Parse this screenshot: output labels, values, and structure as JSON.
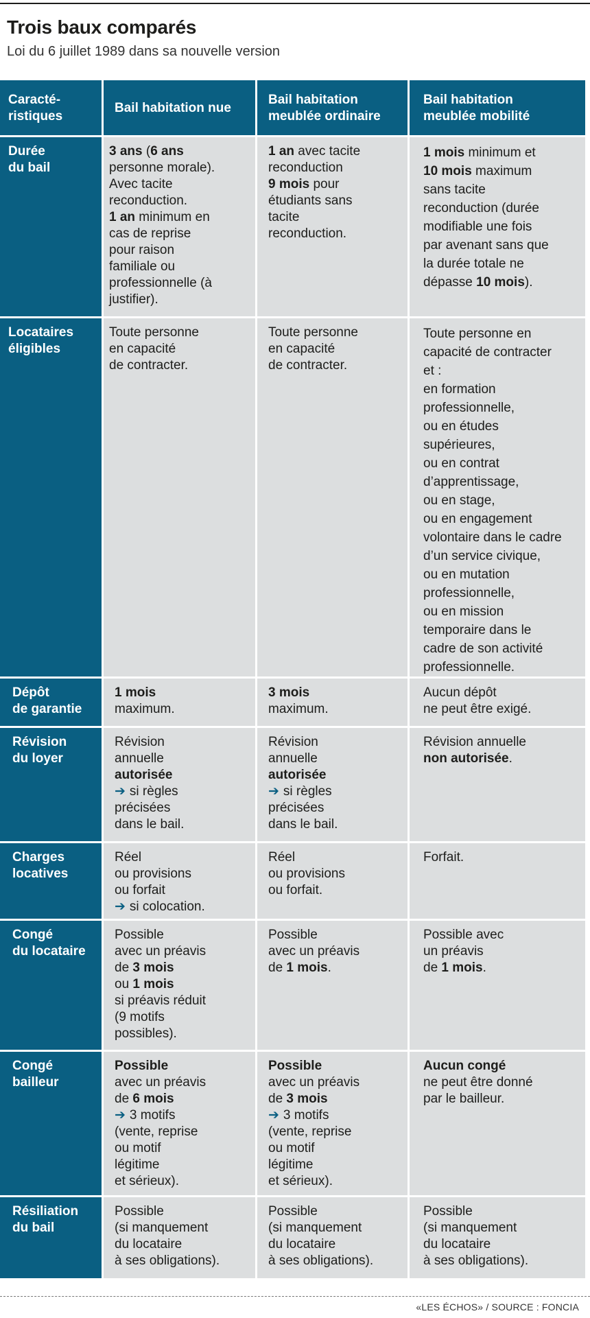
{
  "title": "Trois baux comparés",
  "subtitle": "Loi du 6 juillet 1989 dans sa nouvelle version",
  "headers": {
    "c0": [
      "Caracté-",
      "ristiques"
    ],
    "c1": [
      "Bail habitation nue"
    ],
    "c2": [
      "Bail habitation",
      "meublée ordinaire"
    ],
    "c3": [
      "Bail habitation",
      "meublée mobilité"
    ]
  },
  "rows": {
    "duree": {
      "label": [
        "Durée",
        "du bail"
      ],
      "nue": {
        "l1a": "3 ans",
        "l1b": " (",
        "l1c": "6 ans",
        "l2": "personne morale).",
        "l3": "Avec tacite",
        "l4": "reconduction.",
        "l5a": "1 an",
        "l5b": " minimum en",
        "l6": "cas de reprise",
        "l7": "pour raison",
        "l8": "familiale ou",
        "l9": "professionnelle (à",
        "l10": "justifier)."
      },
      "ordinaire": {
        "l1a": "1 an",
        "l1b": " avec tacite",
        "l2": "reconduction",
        "l3a": "9 mois",
        "l3b": " pour",
        "l4": "étudiants sans",
        "l5": "tacite",
        "l6": "reconduction."
      },
      "mobilite": {
        "l1a": "1 mois",
        "l1b": " minimum et",
        "l2a": "10 mois",
        "l2b": " maximum",
        "l3": "sans tacite",
        "l4": "reconduction (durée",
        "l5": "modifiable une fois",
        "l6": "par avenant sans que",
        "l7": "la durée totale ne",
        "l8a": "dépasse ",
        "l8b": "10 mois",
        "l8c": ")."
      }
    },
    "locataires": {
      "label": [
        "Locataires",
        "éligibles"
      ],
      "nue": [
        "Toute personne",
        "en capacité",
        "de contracter."
      ],
      "ordinaire": [
        "Toute personne",
        "en capacité",
        "de contracter."
      ],
      "mobilite": [
        "Toute personne en",
        "capacité de contracter",
        "et :",
        "en formation",
        "professionnelle,",
        "ou en études",
        "supérieures,",
        "ou en contrat",
        "d’apprentissage,",
        "ou en stage,",
        "ou en engagement",
        "volontaire dans le cadre",
        "d’un service civique,",
        "ou en mutation",
        "professionnelle,",
        "ou en mission",
        "temporaire dans le",
        "cadre de son activité",
        "professionnelle."
      ]
    },
    "depot": {
      "label": [
        "Dépôt",
        "de garantie"
      ],
      "nue": {
        "l1": "1 mois",
        "l2": "maximum."
      },
      "ordinaire": {
        "l1": "3 mois",
        "l2": "maximum."
      },
      "mobilite": [
        "Aucun dépôt",
        "ne peut être exigé."
      ]
    },
    "revision": {
      "label": [
        "Révision",
        "du loyer"
      ],
      "nue": {
        "l1": "Révision",
        "l2": "annuelle",
        "l3": "autorisée",
        "l4": "si règles",
        "l5": "précisées",
        "l6": "dans le bail."
      },
      "ordinaire": {
        "l1": "Révision",
        "l2": "annuelle",
        "l3": "autorisée",
        "l4": "si règles",
        "l5": "précisées",
        "l6": "dans le bail."
      },
      "mobilite": {
        "l1": "Révision annuelle",
        "l2a": "non autorisée",
        "l2b": "."
      }
    },
    "charges": {
      "label": [
        "Charges",
        "locatives"
      ],
      "nue": {
        "l1": "Réel",
        "l2": "ou provisions",
        "l3": "ou forfait",
        "l4": "si colocation."
      },
      "ordinaire": [
        "Réel",
        "ou provisions",
        "ou forfait."
      ],
      "mobilite": [
        "Forfait."
      ]
    },
    "conge_locataire": {
      "label": [
        "Congé",
        "du locataire"
      ],
      "nue": {
        "l1": "Possible",
        "l2": "avec un préavis",
        "l3a": "de ",
        "l3b": "3 mois",
        "l4a": "ou ",
        "l4b": "1 mois",
        "l5": "si préavis réduit",
        "l6": "(9 motifs",
        "l7": "possibles)."
      },
      "ordinaire": {
        "l1": "Possible",
        "l2": "avec un préavis",
        "l3a": "de ",
        "l3b": "1 mois",
        "l3c": "."
      },
      "mobilite": {
        "l1": "Possible avec",
        "l2": "un préavis",
        "l3a": "de ",
        "l3b": "1 mois",
        "l3c": "."
      }
    },
    "conge_bailleur": {
      "label": [
        "Congé",
        "bailleur"
      ],
      "nue": {
        "l1": "Possible",
        "l2": "avec un préavis",
        "l3a": "de ",
        "l3b": "6 mois",
        "l4": "3 motifs",
        "l5": "(vente, reprise",
        "l6": "ou motif",
        "l7": "légitime",
        "l8": "et sérieux)."
      },
      "ordinaire": {
        "l1": "Possible",
        "l2": "avec un préavis",
        "l3a": "de ",
        "l3b": "3 mois",
        "l4": "3 motifs",
        "l5": "(vente, reprise",
        "l6": "ou motif",
        "l7": "légitime",
        "l8": "et sérieux)."
      },
      "mobilite": {
        "l1": "Aucun congé",
        "l2": "ne peut être donné",
        "l3": "par le bailleur."
      }
    },
    "resiliation": {
      "label": [
        "Résiliation",
        "du bail"
      ],
      "nue": [
        "Possible",
        "(si manquement",
        "du locataire",
        "à ses obligations)."
      ],
      "ordinaire": [
        "Possible",
        "(si manquement",
        "du locataire",
        "à ses obligations)."
      ],
      "mobilite": [
        "Possible",
        "(si manquement",
        "du locataire",
        "à ses obligations)."
      ]
    }
  },
  "footer": "«LES ÉCHOS» / SOURCE : FONCIA",
  "colors": {
    "header_blue": "#0a5f82",
    "cell_gray": "#dcdedf"
  },
  "icons": {
    "arrow": "arrow-right-icon"
  }
}
